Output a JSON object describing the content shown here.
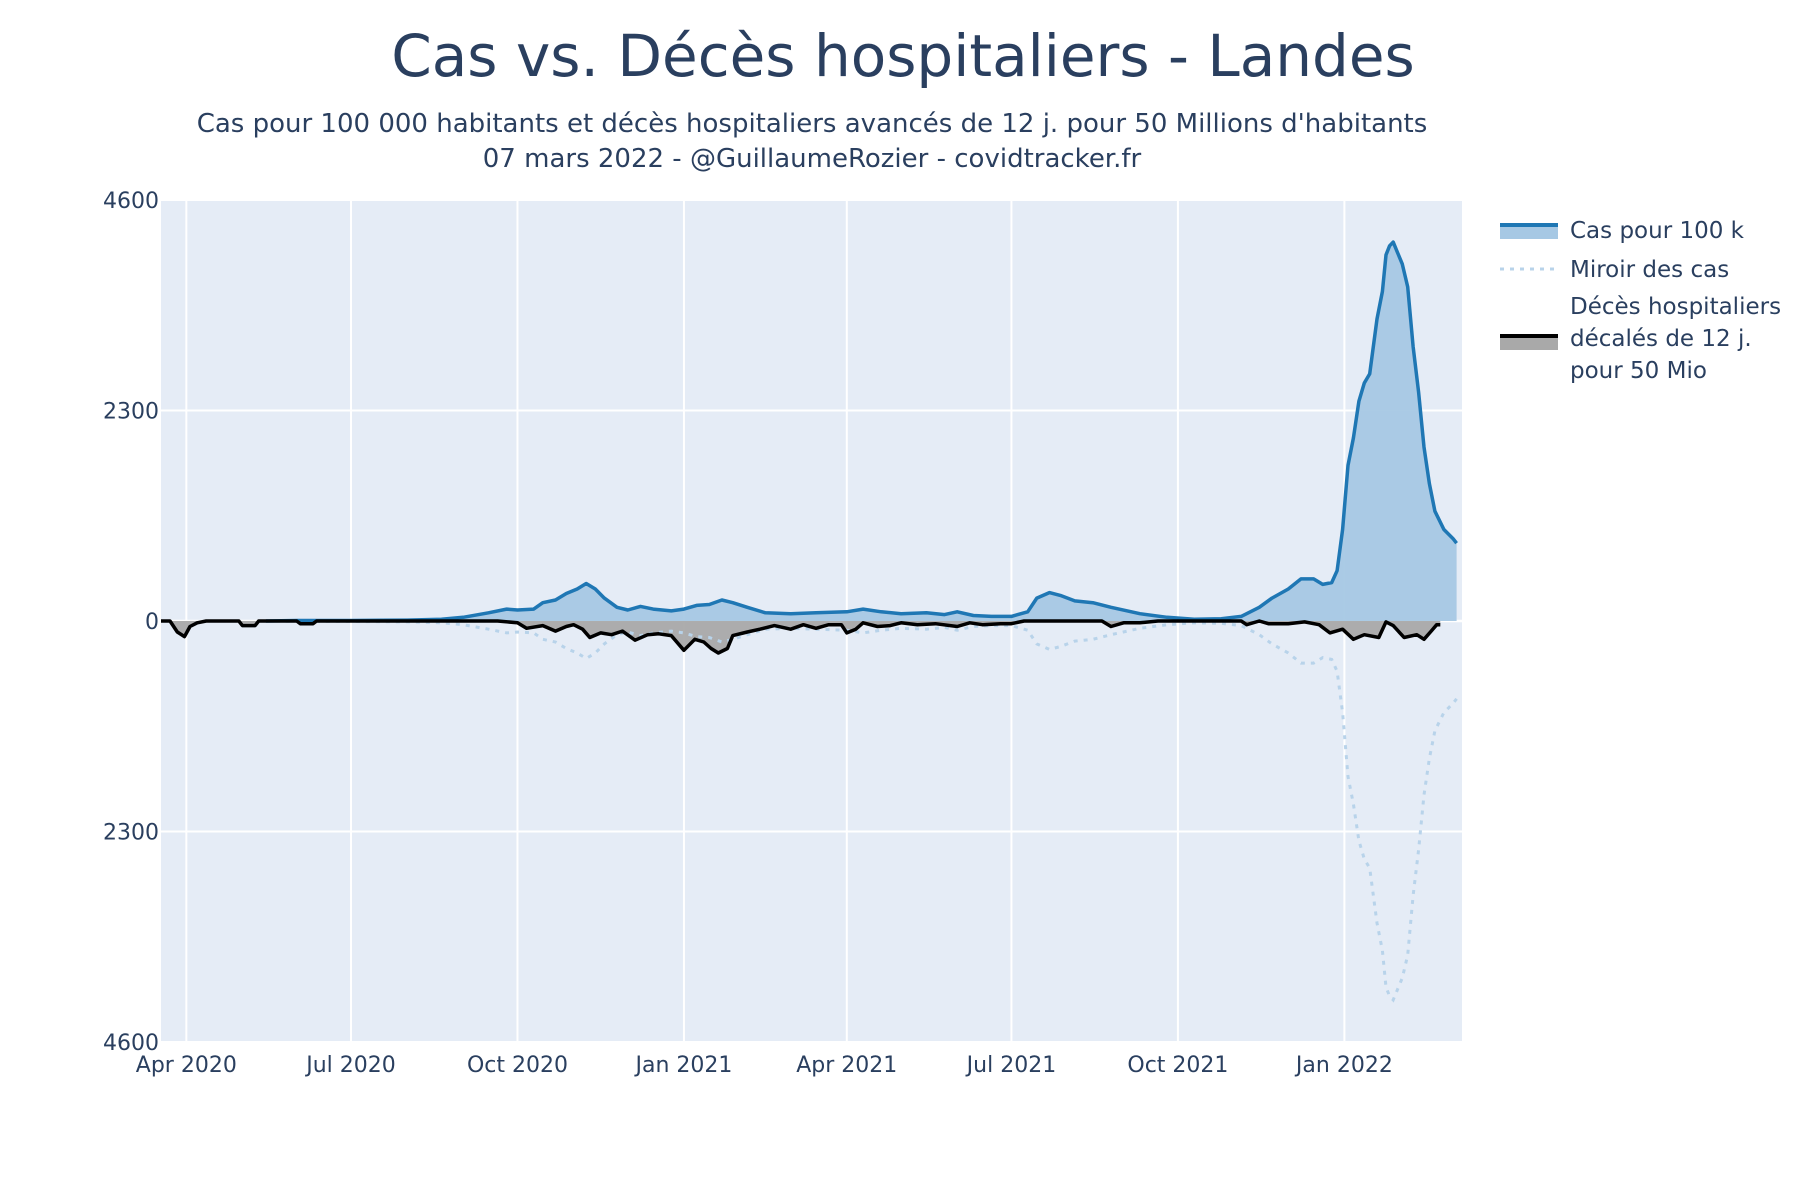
{
  "chart_data": {
    "type": "area",
    "title": "Cas vs. Décès hospitaliers - Landes",
    "subtitle_line1": "Cas pour 100 000 habitants et décès hospitaliers avancés de 12 j. pour 50 Millions d'habitants",
    "subtitle_line2": "07 mars 2022 - @GuillaumeRozier - covidtracker.fr",
    "xlabel": "",
    "ylabel": "",
    "x_range": [
      "2020-03-18",
      "2022-03-07"
    ],
    "ylim": [
      -4600,
      4600
    ],
    "y_ticks": [
      {
        "value": 4600,
        "label": "4600"
      },
      {
        "value": 2300,
        "label": "2300"
      },
      {
        "value": 0,
        "label": "0"
      },
      {
        "value": -2300,
        "label": "2300"
      },
      {
        "value": -4600,
        "label": "4600"
      }
    ],
    "x_ticks": [
      {
        "date": "2020-04-01",
        "label": "Apr 2020"
      },
      {
        "date": "2020-07-01",
        "label": "Jul 2020"
      },
      {
        "date": "2020-10-01",
        "label": "Oct 2020"
      },
      {
        "date": "2021-01-01",
        "label": "Jan 2021"
      },
      {
        "date": "2021-04-01",
        "label": "Apr 2021"
      },
      {
        "date": "2021-07-01",
        "label": "Jul 2021"
      },
      {
        "date": "2021-10-01",
        "label": "Oct 2021"
      },
      {
        "date": "2022-01-01",
        "label": "Jan 2022"
      }
    ],
    "grid": true,
    "legend_position": "right",
    "colors": {
      "plot_bg": "#e5ecf6",
      "grid": "#ffffff",
      "cases_line": "#1f77b4",
      "cases_fill": "#a6c8e4",
      "mirror_line": "#b8d3ea",
      "deaths_line": "#000000",
      "deaths_fill": "#a9a9a9"
    },
    "series": [
      {
        "name": "Cas pour 100 k",
        "style": "line+fill",
        "points": [
          [
            "2020-05-15",
            0
          ],
          [
            "2020-06-01",
            5
          ],
          [
            "2020-07-01",
            5
          ],
          [
            "2020-08-01",
            10
          ],
          [
            "2020-08-20",
            20
          ],
          [
            "2020-09-01",
            40
          ],
          [
            "2020-09-15",
            90
          ],
          [
            "2020-09-25",
            130
          ],
          [
            "2020-10-01",
            120
          ],
          [
            "2020-10-10",
            130
          ],
          [
            "2020-10-15",
            200
          ],
          [
            "2020-10-22",
            230
          ],
          [
            "2020-10-28",
            300
          ],
          [
            "2020-11-03",
            350
          ],
          [
            "2020-11-08",
            410
          ],
          [
            "2020-11-13",
            350
          ],
          [
            "2020-11-18",
            250
          ],
          [
            "2020-11-25",
            150
          ],
          [
            "2020-12-01",
            120
          ],
          [
            "2020-12-08",
            160
          ],
          [
            "2020-12-15",
            130
          ],
          [
            "2020-12-25",
            110
          ],
          [
            "2021-01-01",
            130
          ],
          [
            "2021-01-08",
            170
          ],
          [
            "2021-01-15",
            180
          ],
          [
            "2021-01-22",
            230
          ],
          [
            "2021-01-28",
            200
          ],
          [
            "2021-02-05",
            150
          ],
          [
            "2021-02-15",
            90
          ],
          [
            "2021-03-01",
            80
          ],
          [
            "2021-03-15",
            90
          ],
          [
            "2021-04-01",
            100
          ],
          [
            "2021-04-10",
            130
          ],
          [
            "2021-04-20",
            100
          ],
          [
            "2021-05-01",
            80
          ],
          [
            "2021-05-15",
            90
          ],
          [
            "2021-05-25",
            70
          ],
          [
            "2021-06-01",
            100
          ],
          [
            "2021-06-10",
            60
          ],
          [
            "2021-06-20",
            50
          ],
          [
            "2021-07-01",
            50
          ],
          [
            "2021-07-10",
            100
          ],
          [
            "2021-07-15",
            250
          ],
          [
            "2021-07-22",
            310
          ],
          [
            "2021-07-28",
            280
          ],
          [
            "2021-08-05",
            220
          ],
          [
            "2021-08-15",
            200
          ],
          [
            "2021-08-25",
            150
          ],
          [
            "2021-09-10",
            80
          ],
          [
            "2021-09-25",
            40
          ],
          [
            "2021-10-10",
            20
          ],
          [
            "2021-10-25",
            25
          ],
          [
            "2021-11-05",
            50
          ],
          [
            "2021-11-15",
            150
          ],
          [
            "2021-11-22",
            250
          ],
          [
            "2021-12-01",
            350
          ],
          [
            "2021-12-08",
            460
          ],
          [
            "2021-12-15",
            460
          ],
          [
            "2021-12-20",
            400
          ],
          [
            "2021-12-25",
            420
          ],
          [
            "2021-12-28",
            550
          ],
          [
            "2021-12-31",
            1000
          ],
          [
            "2022-01-03",
            1700
          ],
          [
            "2022-01-06",
            2000
          ],
          [
            "2022-01-09",
            2400
          ],
          [
            "2022-01-12",
            2600
          ],
          [
            "2022-01-15",
            2700
          ],
          [
            "2022-01-19",
            3300
          ],
          [
            "2022-01-22",
            3600
          ],
          [
            "2022-01-24",
            4000
          ],
          [
            "2022-01-26",
            4100
          ],
          [
            "2022-01-28",
            4140
          ],
          [
            "2022-02-02",
            3900
          ],
          [
            "2022-02-05",
            3650
          ],
          [
            "2022-02-08",
            3000
          ],
          [
            "2022-02-11",
            2500
          ],
          [
            "2022-02-14",
            1900
          ],
          [
            "2022-02-17",
            1500
          ],
          [
            "2022-02-20",
            1200
          ],
          [
            "2022-02-25",
            1000
          ],
          [
            "2022-03-02",
            900
          ],
          [
            "2022-03-04",
            850
          ]
        ]
      },
      {
        "name": "Miroir des cas",
        "style": "dotted",
        "mirror_of": "Cas pour 100 k"
      },
      {
        "name": "Décès hospitaliers décalés de 12 j. pour 50 Mio",
        "legend_lines": [
          "Décès hospitaliers",
          "décalés de 12 j.",
          "pour 50 Mio"
        ],
        "style": "line+fill",
        "points": [
          [
            "2020-03-18",
            0
          ],
          [
            "2020-03-23",
            0
          ],
          [
            "2020-03-27",
            -120
          ],
          [
            "2020-03-31",
            -170
          ],
          [
            "2020-04-03",
            -60
          ],
          [
            "2020-04-07",
            -20
          ],
          [
            "2020-04-12",
            0
          ],
          [
            "2020-04-30",
            0
          ],
          [
            "2020-05-02",
            -50
          ],
          [
            "2020-05-09",
            -50
          ],
          [
            "2020-05-11",
            0
          ],
          [
            "2020-06-01",
            0
          ],
          [
            "2020-06-03",
            -30
          ],
          [
            "2020-06-10",
            -30
          ],
          [
            "2020-06-12",
            0
          ],
          [
            "2020-09-20",
            0
          ],
          [
            "2020-10-01",
            -20
          ],
          [
            "2020-10-06",
            -80
          ],
          [
            "2020-10-15",
            -50
          ],
          [
            "2020-10-22",
            -110
          ],
          [
            "2020-10-28",
            -60
          ],
          [
            "2020-11-01",
            -40
          ],
          [
            "2020-11-06",
            -90
          ],
          [
            "2020-11-10",
            -180
          ],
          [
            "2020-11-16",
            -130
          ],
          [
            "2020-11-22",
            -150
          ],
          [
            "2020-11-28",
            -110
          ],
          [
            "2020-12-05",
            -210
          ],
          [
            "2020-12-12",
            -150
          ],
          [
            "2020-12-18",
            -140
          ],
          [
            "2020-12-25",
            -160
          ],
          [
            "2021-01-01",
            -320
          ],
          [
            "2021-01-07",
            -200
          ],
          [
            "2021-01-12",
            -230
          ],
          [
            "2021-01-16",
            -300
          ],
          [
            "2021-01-20",
            -350
          ],
          [
            "2021-01-25",
            -300
          ],
          [
            "2021-01-28",
            -160
          ],
          [
            "2021-02-05",
            -120
          ],
          [
            "2021-02-12",
            -90
          ],
          [
            "2021-02-20",
            -50
          ],
          [
            "2021-03-01",
            -90
          ],
          [
            "2021-03-08",
            -40
          ],
          [
            "2021-03-15",
            -80
          ],
          [
            "2021-03-22",
            -40
          ],
          [
            "2021-03-29",
            -40
          ],
          [
            "2021-04-01",
            -130
          ],
          [
            "2021-04-06",
            -90
          ],
          [
            "2021-04-10",
            -20
          ],
          [
            "2021-04-18",
            -60
          ],
          [
            "2021-04-25",
            -50
          ],
          [
            "2021-05-01",
            -20
          ],
          [
            "2021-05-10",
            -40
          ],
          [
            "2021-05-20",
            -30
          ],
          [
            "2021-06-01",
            -60
          ],
          [
            "2021-06-08",
            -20
          ],
          [
            "2021-06-15",
            -40
          ],
          [
            "2021-06-25",
            -30
          ],
          [
            "2021-07-01",
            -30
          ],
          [
            "2021-07-08",
            0
          ],
          [
            "2021-08-20",
            0
          ],
          [
            "2021-08-25",
            -60
          ],
          [
            "2021-09-01",
            -20
          ],
          [
            "2021-09-10",
            -20
          ],
          [
            "2021-09-20",
            0
          ],
          [
            "2021-11-05",
            0
          ],
          [
            "2021-11-08",
            -40
          ],
          [
            "2021-11-15",
            0
          ],
          [
            "2021-11-20",
            -30
          ],
          [
            "2021-12-01",
            -30
          ],
          [
            "2021-12-10",
            -10
          ],
          [
            "2021-12-18",
            -40
          ],
          [
            "2021-12-24",
            -130
          ],
          [
            "2021-12-31",
            -90
          ],
          [
            "2022-01-06",
            -200
          ],
          [
            "2022-01-12",
            -150
          ],
          [
            "2022-01-20",
            -180
          ],
          [
            "2022-01-24",
            -10
          ],
          [
            "2022-01-28",
            -50
          ],
          [
            "2022-02-03",
            -180
          ],
          [
            "2022-02-10",
            -150
          ],
          [
            "2022-02-14",
            -200
          ],
          [
            "2022-02-18",
            -110
          ],
          [
            "2022-02-21",
            -40
          ],
          [
            "2022-02-23",
            -40
          ]
        ]
      }
    ]
  }
}
